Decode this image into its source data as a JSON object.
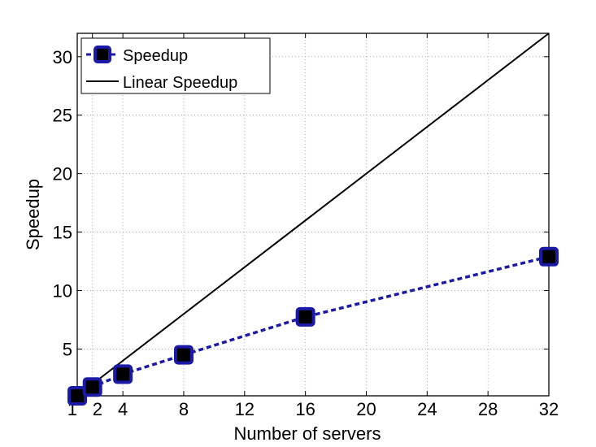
{
  "chart_data": {
    "type": "line",
    "xlabel": "Number of servers",
    "ylabel": "Speedup",
    "xlim": [
      1,
      32
    ],
    "ylim": [
      1,
      32
    ],
    "x_ticks": [
      1,
      2,
      4,
      8,
      12,
      16,
      20,
      24,
      28,
      32
    ],
    "x_tick_labels": [
      "1",
      "2",
      "4",
      "8",
      "12",
      "16",
      "20",
      "24",
      "28",
      "32"
    ],
    "y_ticks": [
      5,
      10,
      15,
      20,
      25,
      30
    ],
    "y_tick_labels": [
      "5",
      "10",
      "15",
      "20",
      "25",
      "30"
    ],
    "grid": true,
    "legend_position": "top-left",
    "series": [
      {
        "name": "Speedup",
        "color": "#1a1aa6",
        "style": "dashed",
        "marker": "square",
        "x": [
          1,
          2,
          4,
          8,
          16,
          32
        ],
        "y": [
          1.0,
          1.75,
          2.85,
          4.5,
          7.75,
          12.9
        ]
      },
      {
        "name": "Linear Speedup",
        "color": "#000000",
        "style": "solid",
        "marker": "none",
        "x": [
          1,
          32
        ],
        "y": [
          1,
          32
        ]
      }
    ]
  }
}
